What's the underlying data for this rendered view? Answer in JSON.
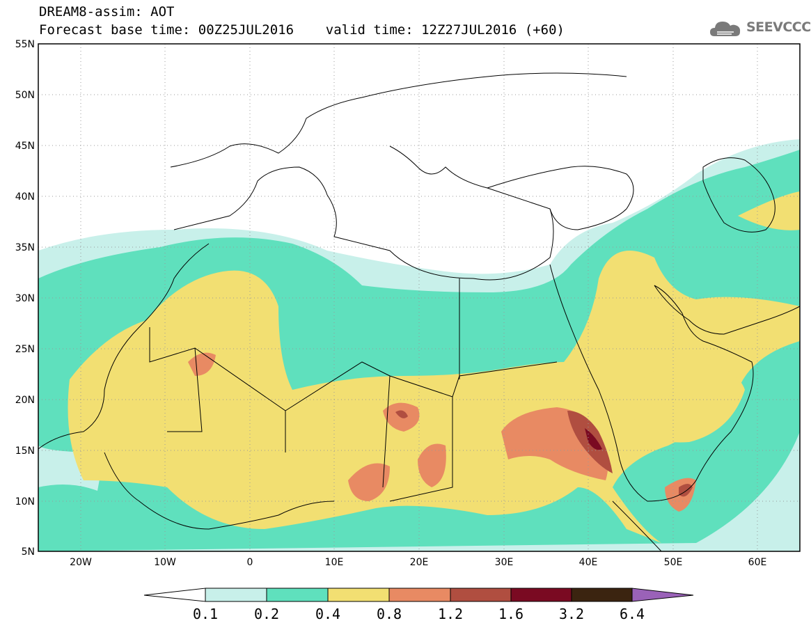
{
  "header": {
    "line1": "DREAM8-assim: AOT",
    "line2": "Forecast base time: 00Z25JUL2016    valid time: 12Z27JUL2016 (+60)"
  },
  "logo": {
    "text": "SEEVCCC",
    "icon": "cloud-icon"
  },
  "map": {
    "lat_labels": [
      "55N",
      "50N",
      "45N",
      "40N",
      "35N",
      "30N",
      "25N",
      "20N",
      "15N",
      "10N",
      "5N"
    ],
    "lon_labels": [
      "20W",
      "10W",
      "0",
      "10E",
      "20E",
      "30E",
      "40E",
      "50E",
      "60E"
    ],
    "lat_range": [
      5,
      55
    ],
    "lon_range": [
      -25,
      65
    ],
    "grid": "dotted"
  },
  "colorbar": {
    "labels": [
      "0.1",
      "0.2",
      "0.4",
      "0.8",
      "1.2",
      "1.6",
      "3.2",
      "6.4"
    ],
    "colors": [
      "#c8f0ea",
      "#5fe0bd",
      "#f2df72",
      "#e88a63",
      "#b04e40",
      "#7a0a22",
      "#3b2410"
    ],
    "under_color": "#ffffff",
    "over_color": "#9a62b8"
  }
}
